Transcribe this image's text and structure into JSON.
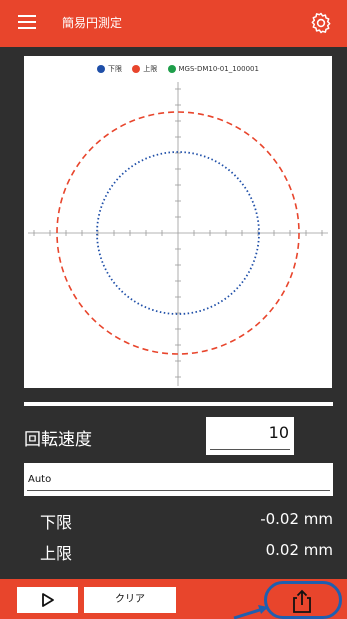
{
  "header": {
    "title": "簡易円測定",
    "menu_icon": "menu-icon",
    "settings_icon": "gear-icon"
  },
  "legend": [
    {
      "label": "下限",
      "color": "#1f4fa8"
    },
    {
      "label": "上限",
      "color": "#e8452c"
    },
    {
      "label": "MGS-DM10-01_100001",
      "color": "#1e9e4a"
    }
  ],
  "plot": {
    "lower_limit_color": "#1f4fa8",
    "upper_limit_color": "#e8452c"
  },
  "controls": {
    "speed_label": "回転速度",
    "speed_value": "10",
    "mode_value": "Auto",
    "lower_label": "下限",
    "lower_value": "-0.02 mm",
    "upper_label": "上限",
    "upper_value": "0.02 mm"
  },
  "footer": {
    "play_icon": "play-icon",
    "clear_label": "クリア",
    "share_icon": "share-icon",
    "accent": "#e8452c",
    "highlight": "#1f5fb0"
  }
}
